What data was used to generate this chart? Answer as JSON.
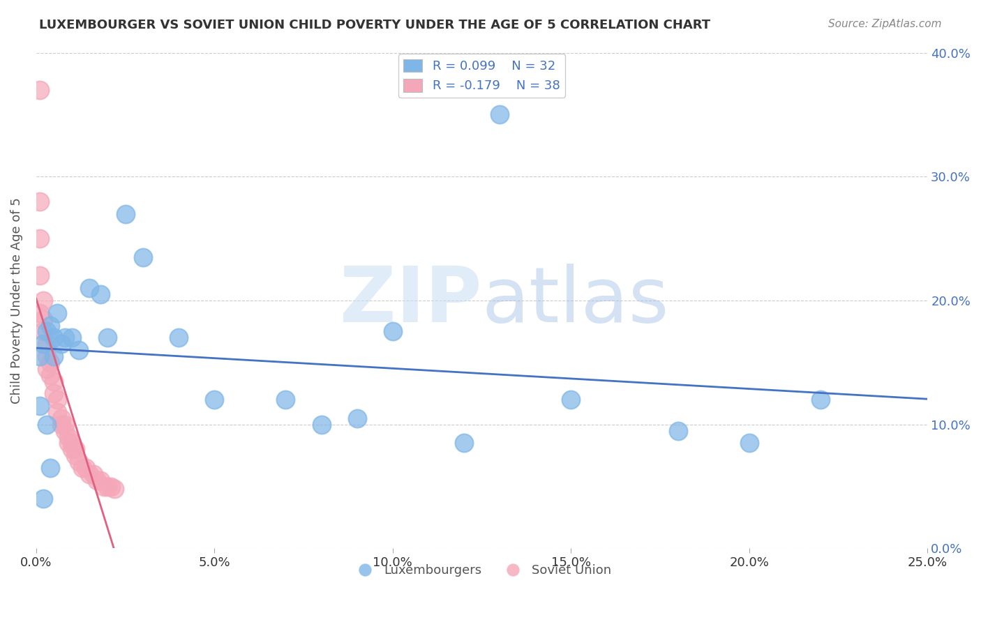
{
  "title": "LUXEMBOURGER VS SOVIET UNION CHILD POVERTY UNDER THE AGE OF 5 CORRELATION CHART",
  "source": "Source: ZipAtlas.com",
  "ylabel": "Child Poverty Under the Age of 5",
  "xlabel": "",
  "xlim": [
    0.0,
    0.25
  ],
  "ylim": [
    0.0,
    0.4
  ],
  "xticks": [
    0.0,
    0.05,
    0.1,
    0.15,
    0.2,
    0.25
  ],
  "yticks": [
    0.0,
    0.1,
    0.2,
    0.3,
    0.4
  ],
  "background_color": "#ffffff",
  "watermark_zip": "ZIP",
  "watermark_atlas": "atlas",
  "legend_R_blue": "R = 0.099",
  "legend_N_blue": "N = 32",
  "legend_R_pink": "R = -0.179",
  "legend_N_pink": "N = 38",
  "blue_color": "#7EB6E8",
  "pink_color": "#F4A7B9",
  "blue_line_color": "#4472C4",
  "pink_line_color": "#E06080",
  "lux_x": [
    0.001,
    0.002,
    0.003,
    0.004,
    0.005,
    0.006,
    0.008,
    0.01,
    0.012,
    0.015,
    0.018,
    0.02,
    0.025,
    0.03,
    0.04,
    0.05,
    0.07,
    0.08,
    0.09,
    0.1,
    0.12,
    0.15,
    0.18,
    0.2,
    0.22,
    0.001,
    0.003,
    0.005,
    0.007,
    0.002,
    0.004,
    0.13
  ],
  "lux_y": [
    0.155,
    0.165,
    0.175,
    0.18,
    0.17,
    0.19,
    0.17,
    0.17,
    0.16,
    0.21,
    0.205,
    0.17,
    0.27,
    0.235,
    0.17,
    0.12,
    0.12,
    0.1,
    0.105,
    0.175,
    0.085,
    0.12,
    0.095,
    0.085,
    0.12,
    0.115,
    0.1,
    0.155,
    0.165,
    0.04,
    0.065,
    0.35
  ],
  "sov_x": [
    0.001,
    0.001,
    0.001,
    0.001,
    0.002,
    0.002,
    0.002,
    0.003,
    0.003,
    0.003,
    0.004,
    0.004,
    0.005,
    0.005,
    0.006,
    0.006,
    0.007,
    0.007,
    0.008,
    0.008,
    0.009,
    0.009,
    0.01,
    0.01,
    0.011,
    0.011,
    0.012,
    0.013,
    0.014,
    0.015,
    0.016,
    0.017,
    0.018,
    0.019,
    0.02,
    0.021,
    0.022,
    0.001
  ],
  "sov_y": [
    0.37,
    0.28,
    0.25,
    0.22,
    0.2,
    0.185,
    0.175,
    0.165,
    0.155,
    0.145,
    0.15,
    0.14,
    0.135,
    0.125,
    0.12,
    0.11,
    0.105,
    0.1,
    0.1,
    0.095,
    0.09,
    0.085,
    0.085,
    0.08,
    0.08,
    0.075,
    0.07,
    0.065,
    0.065,
    0.06,
    0.06,
    0.055,
    0.055,
    0.05,
    0.05,
    0.05,
    0.048,
    0.19
  ]
}
